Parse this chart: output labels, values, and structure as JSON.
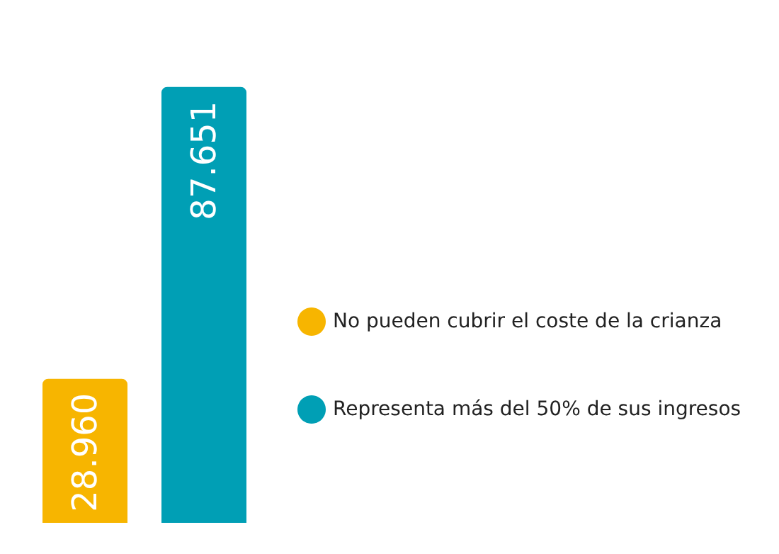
{
  "chart_data": {
    "type": "bar",
    "categories": [
      null
    ],
    "legend": "right",
    "series": [
      {
        "name": "No pueden cubrir el coste de la crianza",
        "color": "#f7b500",
        "values": [
          28960
        ],
        "value_labels": [
          "28.960"
        ]
      },
      {
        "name": "Representa más del 50% de sus ingresos",
        "color": "#009fb5",
        "values": [
          87651
        ],
        "value_labels": [
          "87.651"
        ]
      }
    ]
  }
}
